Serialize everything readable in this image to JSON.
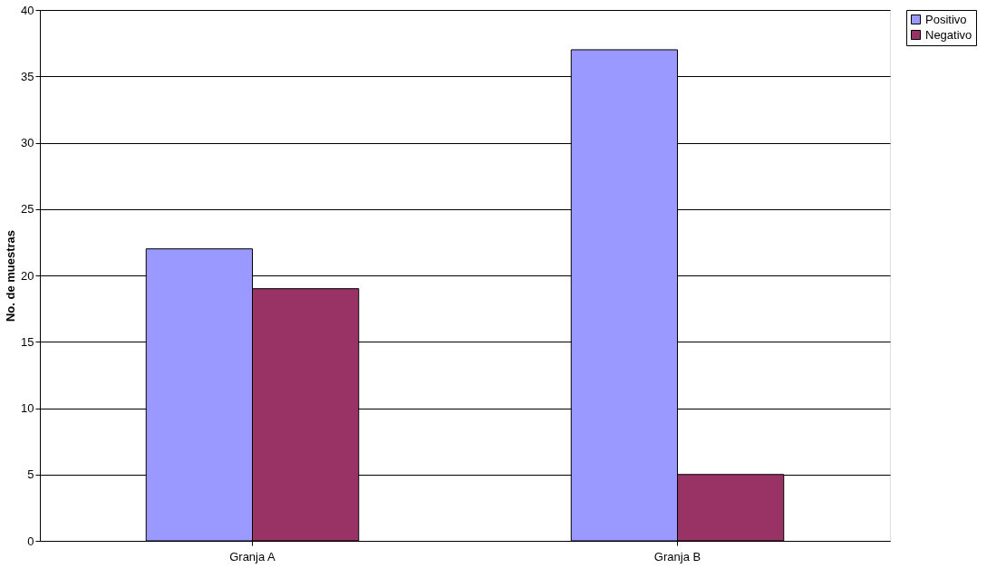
{
  "chart_data": {
    "type": "bar",
    "ylabel": "No. de muestras",
    "categories": [
      "Granja A",
      "Granja B"
    ],
    "series": [
      {
        "name": "Positivo",
        "color": "#9999ff",
        "values": [
          22,
          37
        ]
      },
      {
        "name": "Negativo",
        "color": "#993366",
        "values": [
          19,
          5
        ]
      }
    ],
    "ylim": [
      0,
      40
    ],
    "yticks": [
      0,
      5,
      10,
      15,
      20,
      25,
      30,
      35,
      40
    ],
    "grid": "y",
    "legend": "right"
  }
}
